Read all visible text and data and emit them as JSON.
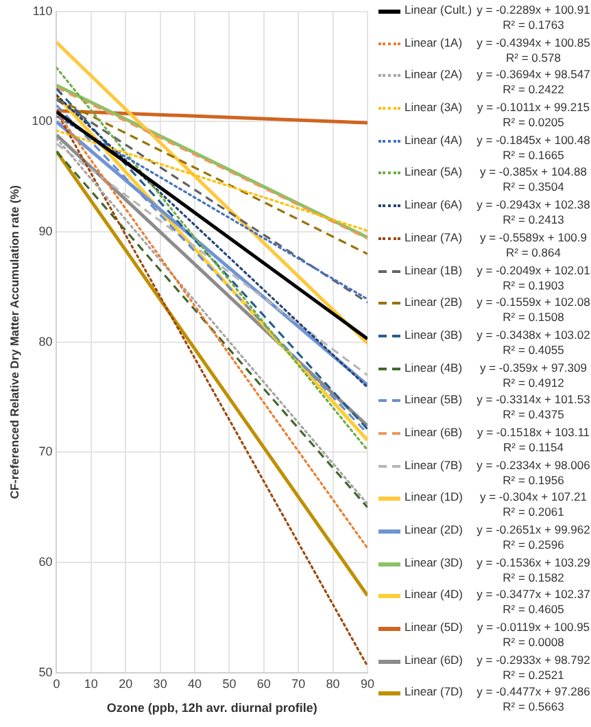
{
  "chart_data": {
    "type": "line",
    "xlabel": "Ozone (ppb, 12h avr. diurnal profile)",
    "ylabel": "CF-referenced Relative Dry Matter Accumulation rate (%)",
    "x": [
      0,
      90
    ],
    "xlim": [
      0,
      90
    ],
    "xticks": [
      0,
      10,
      20,
      30,
      40,
      50,
      60,
      70,
      80,
      90
    ],
    "ylim": [
      50,
      110
    ],
    "yticks": [
      50,
      60,
      70,
      80,
      90,
      100,
      110
    ],
    "grid": true,
    "legend": "right",
    "marker": "none",
    "series": [
      {
        "name": "Linear (Cult.)",
        "color": "#000000",
        "line_style": "solid",
        "values": [
          100.9,
          80.3
        ]
      },
      {
        "name": "Linear (1A)",
        "color": "#ed7d31",
        "line_style": "dotted",
        "values": [
          100.9,
          61.3
        ]
      },
      {
        "name": "Linear (2A)",
        "color": "#a5a5a5",
        "line_style": "dotted",
        "values": [
          98.5,
          65.3
        ]
      },
      {
        "name": "Linear (3A)",
        "color": "#ffc000",
        "line_style": "dotted",
        "values": [
          99.2,
          90.1
        ]
      },
      {
        "name": "Linear (4A)",
        "color": "#4472c4",
        "line_style": "dotted",
        "values": [
          100.5,
          83.9
        ]
      },
      {
        "name": "Linear (5A)",
        "color": "#70ad47",
        "line_style": "dotted",
        "values": [
          104.9,
          70.2
        ]
      },
      {
        "name": "Linear (6A)",
        "color": "#264478",
        "line_style": "dotted",
        "values": [
          102.4,
          75.9
        ]
      },
      {
        "name": "Linear (7A)",
        "color": "#9e480e",
        "line_style": "dotted",
        "values": [
          100.9,
          50.6
        ]
      },
      {
        "name": "Linear (1B)",
        "color": "#636363",
        "line_style": "dashed",
        "values": [
          102.0,
          83.6
        ]
      },
      {
        "name": "Linear (2B)",
        "color": "#997300",
        "line_style": "dashed",
        "values": [
          102.1,
          88.0
        ]
      },
      {
        "name": "Linear (3B)",
        "color": "#255e91",
        "line_style": "dashed",
        "values": [
          103.0,
          72.1
        ]
      },
      {
        "name": "Linear (4B)",
        "color": "#43682b",
        "line_style": "dashed",
        "values": [
          97.3,
          65.0
        ]
      },
      {
        "name": "Linear (5B)",
        "color": "#698ed0",
        "line_style": "dashed",
        "values": [
          101.5,
          71.7
        ]
      },
      {
        "name": "Linear (6B)",
        "color": "#f1975a",
        "line_style": "dashed",
        "values": [
          103.1,
          89.4
        ]
      },
      {
        "name": "Linear (7B)",
        "color": "#b7b7b7",
        "line_style": "dashed",
        "values": [
          98.0,
          77.0
        ]
      },
      {
        "name": "Linear (1D)",
        "color": "#ffc83d",
        "line_style": "solid",
        "values": [
          107.2,
          79.9
        ]
      },
      {
        "name": "Linear (2D)",
        "color": "#6f94d4",
        "line_style": "solid",
        "values": [
          100.0,
          76.1
        ]
      },
      {
        "name": "Linear (3D)",
        "color": "#8cc168",
        "line_style": "solid",
        "values": [
          103.3,
          89.5
        ]
      },
      {
        "name": "Linear (4D)",
        "color": "#ffcd33",
        "line_style": "solid",
        "values": [
          102.4,
          71.1
        ]
      },
      {
        "name": "Linear (5D)",
        "color": "#d0651f",
        "line_style": "solid",
        "values": [
          101.0,
          99.9
        ]
      },
      {
        "name": "Linear (6D)",
        "color": "#8c8c8c",
        "line_style": "solid",
        "values": [
          98.8,
          72.4
        ]
      },
      {
        "name": "Linear (7D)",
        "color": "#bf9000",
        "line_style": "solid",
        "values": [
          97.3,
          57.0
        ]
      }
    ],
    "annotations": [
      "y = -0.2289x + 100.91",
      "R² = 0.1763",
      "y = -0.4394x + 100.85",
      "R² = 0.578",
      "y = -0.3694x + 98.547",
      "R² = 0.2422",
      "y = -0.1011x + 99.215",
      "R² = 0.0205",
      "y = -0.1845x + 100.48",
      "R² = 0.1665",
      "y = -0.385x + 104.88",
      "R² = 0.3504",
      "y = -0.2943x + 102.38",
      "R² = 0.2413",
      "y = -0.5589x + 100.9",
      "R² = 0.864",
      "y = -0.2049x + 102.01",
      "R² = 0.1903",
      "y = -0.1559x + 102.08",
      "R² = 0.1508",
      "y = -0.3438x + 103.02",
      "R² = 0.4055",
      "y = -0.359x + 97.309",
      "R² = 0.4912",
      "y = -0.3314x + 101.53",
      "R² = 0.4375",
      "y = -0.1518x + 103.11",
      "R² = 0.1154",
      "y = -0.2334x + 98.006",
      "R² = 0.1956",
      "y = -0.304x + 107.21",
      "R² = 0.2061",
      "y = -0.2651x + 99.962",
      "R² = 0.2596",
      "y = -0.1536x + 103.29",
      "R² = 0.1582",
      "y = -0.3477x + 102.37",
      "R² = 0.4605",
      "y = -0.0119x + 100.95",
      "R² = 0.0008",
      "y = -0.2933x + 98.792",
      "R² = 0.2521",
      "y = -0.4477x + 97.286",
      "R² = 0.5663"
    ]
  }
}
